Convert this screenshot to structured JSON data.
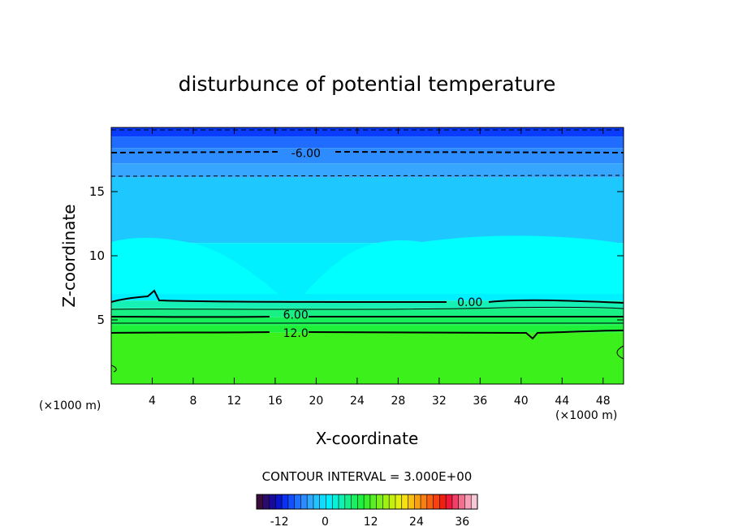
{
  "chart_data": {
    "type": "contour",
    "title": "disturbunce of potential temperature",
    "xlabel": "X-coordinate",
    "ylabel": "Z-coordinate",
    "x_unit_left": "(×1000 m)",
    "x_unit_right": "(×1000 m)",
    "xlim": [
      0,
      50
    ],
    "ylim": [
      0,
      20
    ],
    "x_ticks": [
      4,
      8,
      12,
      16,
      20,
      24,
      28,
      32,
      36,
      40,
      44,
      48
    ],
    "y_ticks": [
      5,
      10,
      15
    ],
    "contour_interval_text": "CONTOUR INTERVAL = 3.000E+00",
    "contour_labels": [
      {
        "text": "-6.00",
        "x": 19,
        "z": 18
      },
      {
        "text": "0.00",
        "x": 35,
        "z": 6.4
      },
      {
        "text": "6.00",
        "x": 18,
        "z": 5.4
      },
      {
        "text": "12.0",
        "x": 18,
        "z": 4.0
      }
    ],
    "field_bands": [
      {
        "z_from": 19.3,
        "z_to": 20,
        "value": -12,
        "color": "#0a3cff"
      },
      {
        "z_from": 18.4,
        "z_to": 19.3,
        "value": -10,
        "color": "#1f6cff"
      },
      {
        "z_from": 17.2,
        "z_to": 18.4,
        "value": -7,
        "color": "#2d8cff"
      },
      {
        "z_from": 16.1,
        "z_to": 17.2,
        "value": -5,
        "color": "#36a6ff"
      },
      {
        "z_from": 11,
        "z_to": 16.1,
        "value": -3,
        "color": "#1ec8ff"
      },
      {
        "z_from": 6.5,
        "z_to": 11,
        "value": -1,
        "color": "#00f0ff"
      },
      {
        "z_from": 5.9,
        "z_to": 6.5,
        "value": 1,
        "color": "#16f0b4"
      },
      {
        "z_from": 5.2,
        "z_to": 5.9,
        "value": 4,
        "color": "#18f086"
      },
      {
        "z_from": 4.6,
        "z_to": 5.2,
        "value": 7,
        "color": "#16f05a"
      },
      {
        "z_from": 4.0,
        "z_to": 4.6,
        "value": 10,
        "color": "#1ff03a"
      },
      {
        "z_from": 0,
        "z_to": 4.0,
        "value": 13,
        "color": "#3cf01c"
      }
    ],
    "colorbar": {
      "min": -18,
      "max": 40,
      "tick_labels": [
        -12,
        0,
        12,
        24,
        36
      ],
      "colors": [
        "#3a0c3c",
        "#2a0a6e",
        "#1a0a9a",
        "#0a14c8",
        "#0a32f0",
        "#1050ff",
        "#1e70ff",
        "#2a8cff",
        "#30a8ff",
        "#22c4ff",
        "#10dcff",
        "#00f0ff",
        "#08f0d8",
        "#10f0b0",
        "#14f08a",
        "#18f064",
        "#1ff044",
        "#38f028",
        "#58f020",
        "#7cf018",
        "#a0f010",
        "#c4f010",
        "#e4f010",
        "#f8e010",
        "#f8c010",
        "#f8a010",
        "#f88010",
        "#f86010",
        "#f84010",
        "#f02010",
        "#f01838",
        "#f04068",
        "#f07090",
        "#f8a0b8",
        "#f8c8d8"
      ]
    }
  }
}
